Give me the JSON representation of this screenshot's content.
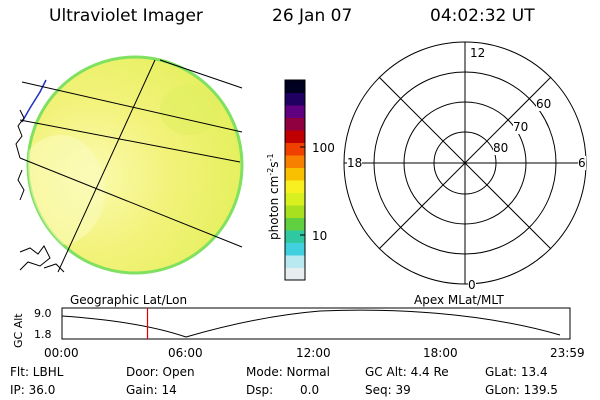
{
  "header": {
    "instrument": "Ultraviolet Imager",
    "date": "26 Jan 07",
    "time": "04:02:32 UT"
  },
  "colorbar": {
    "unit": "photon cm",
    "unit_exp1": "-2",
    "unit_mid": "s",
    "unit_exp2": "-1",
    "tick_100": "100",
    "tick_10": "10",
    "colors": [
      "#e8eef0",
      "#b8e8f0",
      "#40d0e0",
      "#30c8a0",
      "#60d040",
      "#a8e020",
      "#d8f020",
      "#f8f020",
      "#f8c000",
      "#f88000",
      "#f04000",
      "#c00000",
      "#900040",
      "#600080",
      "#200060",
      "#000020"
    ]
  },
  "image_panel": {
    "label": "Geographic Lat/Lon",
    "disk_color": "#f0f068",
    "edge_color": "#80e060",
    "bright_color": "#fafaa8"
  },
  "polar_panel": {
    "label": "Apex MLat/MLT",
    "mlt_12": "12",
    "mlt_18": "18",
    "mlt_6": "6",
    "mlt_0": "0",
    "lat_60": "60",
    "lat_70": "70",
    "lat_80": "80"
  },
  "altitude_plot": {
    "ylabel": "GC Alt",
    "ymax": "9.0",
    "ymin": "1.8",
    "xticks": [
      "00:00",
      "06:00",
      "12:00",
      "18:00",
      "23:59"
    ],
    "marker_hour": 4.04,
    "marker_color": "#e00000"
  },
  "status": {
    "filter": "Flt: LBHL",
    "door": "Door: Open",
    "mode": "Mode: Normal",
    "gc_alt": "GC Alt: 4.4 Re",
    "glat": "GLat: 13.4",
    "ip": "IP: 36.0",
    "gain": "Gain: 14",
    "dsp": "Dsp:",
    "dsp_value": "0.0",
    "seq": "Seq: 39",
    "glon": "GLon: 139.5"
  }
}
